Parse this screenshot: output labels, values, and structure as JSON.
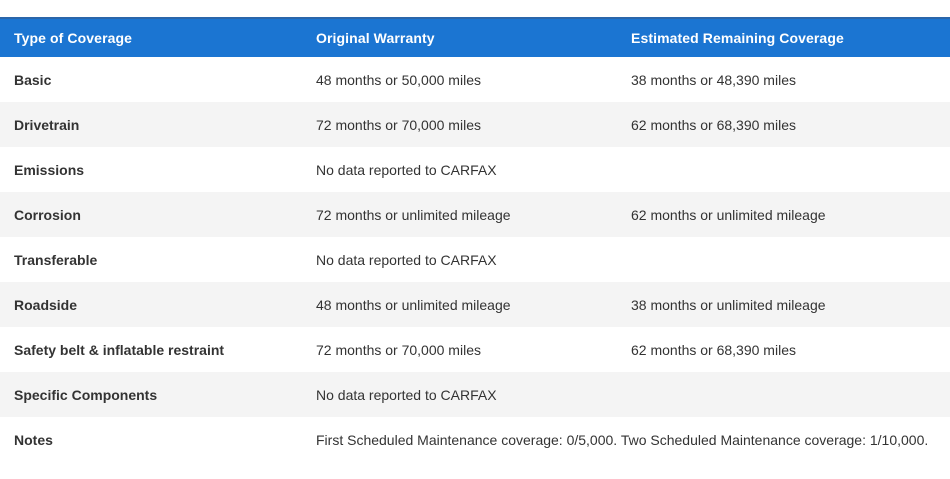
{
  "colors": {
    "header_bg": "#1b75d2",
    "header_top_border": "#2b66aa",
    "header_text": "#ffffff",
    "row_stripe_bg": "#f4f4f4",
    "row_bg": "#ffffff",
    "body_text": "#333333"
  },
  "table": {
    "columns": [
      {
        "label": "Type of Coverage"
      },
      {
        "label": "Original Warranty"
      },
      {
        "label": "Estimated Remaining Coverage"
      }
    ],
    "rows": [
      {
        "type": "Basic",
        "original": "48 months or 50,000 miles",
        "remaining": "38 months or 48,390 miles"
      },
      {
        "type": "Drivetrain",
        "original": "72 months or 70,000 miles",
        "remaining": "62 months or 68,390 miles"
      },
      {
        "type": "Emissions",
        "original": "No data reported to CARFAX",
        "remaining": ""
      },
      {
        "type": "Corrosion",
        "original": "72 months or unlimited mileage",
        "remaining": "62 months or unlimited mileage"
      },
      {
        "type": "Transferable",
        "original": "No data reported to CARFAX",
        "remaining": ""
      },
      {
        "type": "Roadside",
        "original": "48 months or unlimited mileage",
        "remaining": "38 months or unlimited mileage"
      },
      {
        "type": "Safety belt & inflatable restraint",
        "original": "72 months or 70,000 miles",
        "remaining": "62 months or 68,390 miles"
      },
      {
        "type": "Specific Components",
        "original": "No data reported to CARFAX",
        "remaining": ""
      },
      {
        "type": "Notes",
        "original": "First Scheduled Maintenance coverage: 0/5,000. Two Scheduled Maintenance coverage: 1/10,000.",
        "remaining": ""
      }
    ]
  }
}
